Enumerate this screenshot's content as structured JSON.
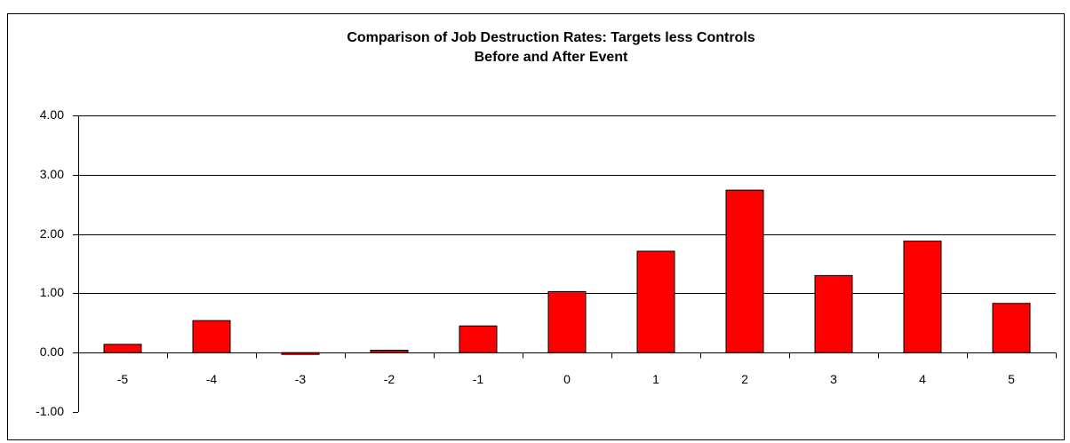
{
  "chart_data": {
    "type": "bar",
    "title": "Comparison of Job Destruction Rates:  Targets less Controls",
    "subtitle": "Before and After Event",
    "categories": [
      "-5",
      "-4",
      "-3",
      "-2",
      "-1",
      "0",
      "1",
      "2",
      "3",
      "4",
      "5"
    ],
    "values": [
      0.14,
      0.54,
      -0.03,
      0.04,
      0.45,
      1.03,
      1.71,
      2.74,
      1.3,
      1.88,
      0.83
    ],
    "color": "#ff0000",
    "ylim": [
      -1,
      4
    ],
    "yticks": [
      {
        "value": -1,
        "label": "-1.00"
      },
      {
        "value": 0,
        "label": "0.00"
      },
      {
        "value": 1,
        "label": "1.00"
      },
      {
        "value": 2,
        "label": "2.00"
      },
      {
        "value": 3,
        "label": "3.00"
      },
      {
        "value": 4,
        "label": "4.00"
      }
    ],
    "grid": true
  }
}
